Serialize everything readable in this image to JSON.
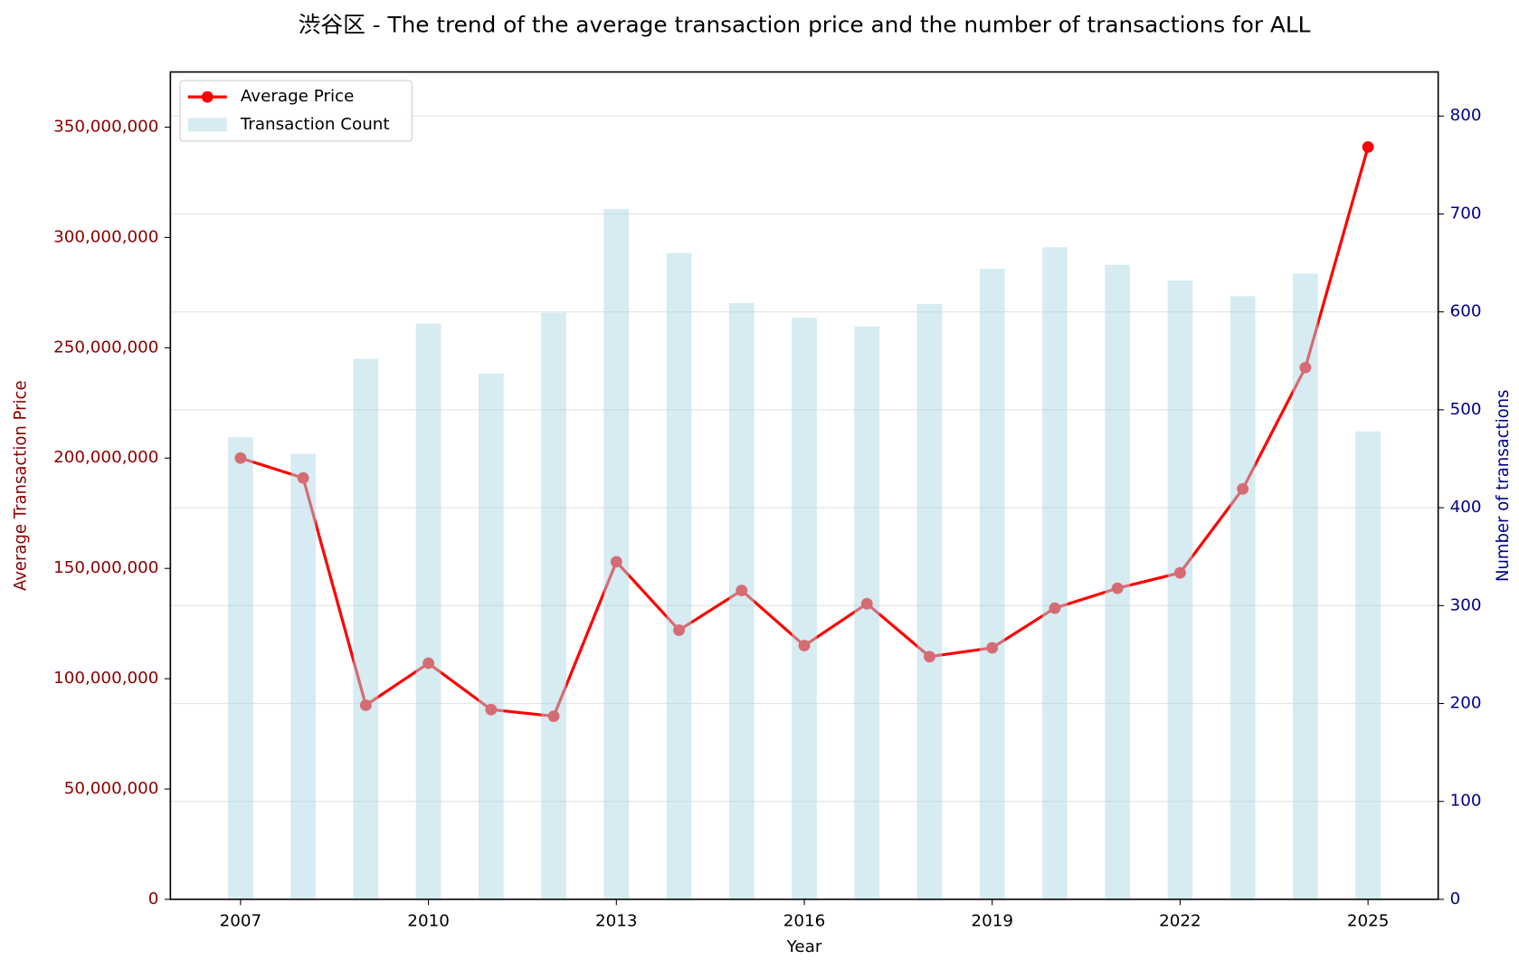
{
  "chart_data": {
    "type": "bar_line",
    "title": "渋谷区 - The trend of the average transaction price and the number of transactions for ALL",
    "x_label": "Year",
    "y_label": "Average Transaction Price",
    "y2_label": "Number of transactions",
    "x": [
      2007,
      2008,
      2009,
      2010,
      2011,
      2012,
      2013,
      2014,
      2015,
      2016,
      2017,
      2018,
      2019,
      2020,
      2021,
      2022,
      2023,
      2024,
      2025
    ],
    "xlim": [
      2005.88,
      2026.12
    ],
    "xticks": [
      2007,
      2010,
      2013,
      2016,
      2019,
      2022,
      2025
    ],
    "ylim": [
      0,
      375000000
    ],
    "yticks": [
      0,
      {
        "value": 50000000,
        "label": "50,000,000"
      },
      {
        "value": 100000000,
        "label": "100,000,000"
      },
      {
        "value": 150000000,
        "label": "150,000,000"
      },
      {
        "value": 200000000,
        "label": "200,000,000"
      },
      {
        "value": 250000000,
        "label": "250,000,000"
      },
      {
        "value": 300000000,
        "label": "300,000,000"
      },
      {
        "value": 350000000,
        "label": "350,000,000"
      }
    ],
    "y2lim": [
      0,
      845
    ],
    "y2ticks": [
      0,
      100,
      200,
      300,
      400,
      500,
      600,
      700,
      800
    ],
    "grid": true,
    "legend": "upper left",
    "y_color": "#8b0000",
    "y2_color": "#00008b",
    "series": [
      {
        "name": "Average Price",
        "type": "line",
        "axis": "y",
        "color": "#ff0000",
        "values": [
          200000000,
          191000000,
          88000000,
          107000000,
          86000000,
          83000000,
          153000000,
          122000000,
          140000000,
          115000000,
          134000000,
          110000000,
          114000000,
          132000000,
          141000000,
          148000000,
          186000000,
          241000000,
          341000000
        ]
      },
      {
        "name": "Transaction Count",
        "type": "bar",
        "axis": "y2",
        "color": "#add8e6",
        "values": [
          472,
          455,
          552,
          588,
          537,
          599,
          705,
          660,
          609,
          594,
          585,
          608,
          644,
          666,
          648,
          632,
          616,
          639,
          478
        ]
      }
    ]
  }
}
